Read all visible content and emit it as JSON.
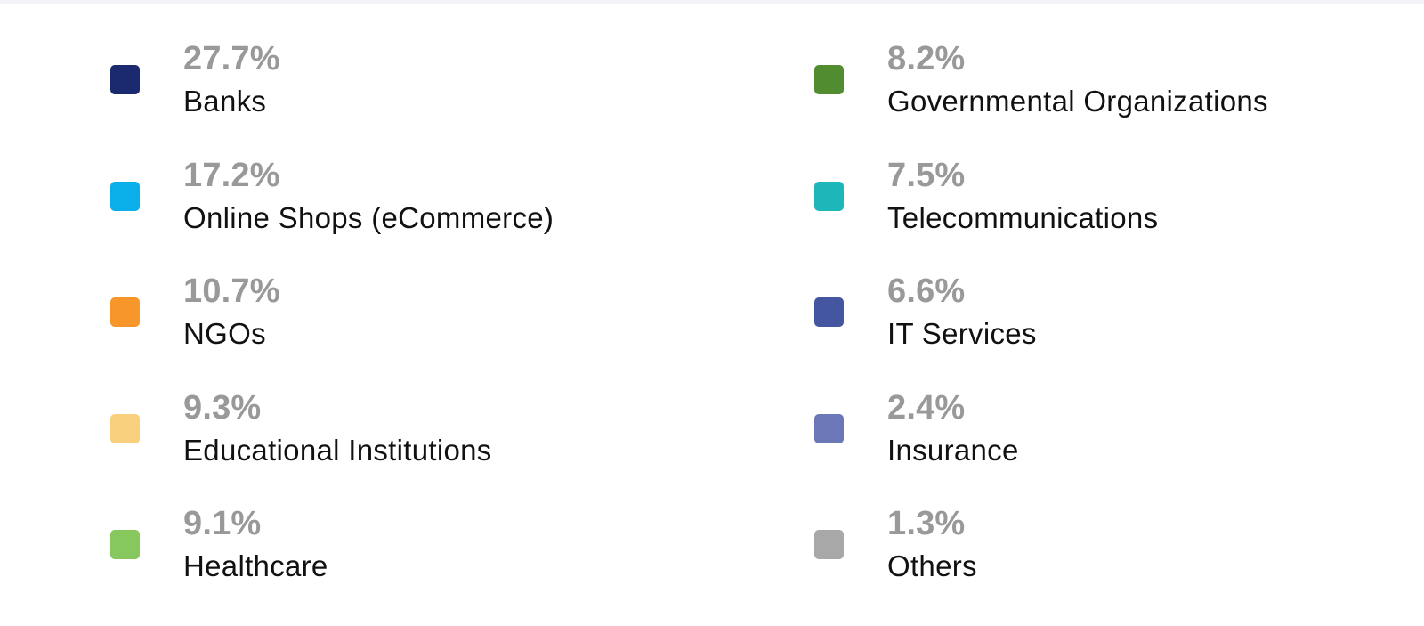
{
  "legend": {
    "left": [
      {
        "percent": "27.7%",
        "label": "Banks",
        "color": "#1b2a6e"
      },
      {
        "percent": "17.2%",
        "label": "Online Shops (eCommerce)",
        "color": "#0aaee8"
      },
      {
        "percent": "10.7%",
        "label": "NGOs",
        "color": "#f7962a"
      },
      {
        "percent": "9.3%",
        "label": "Educational Institutions",
        "color": "#f8d07e"
      },
      {
        "percent": "9.1%",
        "label": "Healthcare",
        "color": "#86c85e"
      }
    ],
    "right": [
      {
        "percent": "8.2%",
        "label": "Governmental Organizations",
        "color": "#528c31"
      },
      {
        "percent": "7.5%",
        "label": "Telecommunications",
        "color": "#1db6b9"
      },
      {
        "percent": "6.6%",
        "label": "IT Services",
        "color": "#43569f"
      },
      {
        "percent": "2.4%",
        "label": "Insurance",
        "color": "#6b77b6"
      },
      {
        "percent": "1.3%",
        "label": "Others",
        "color": "#a8a8a8"
      }
    ]
  }
}
